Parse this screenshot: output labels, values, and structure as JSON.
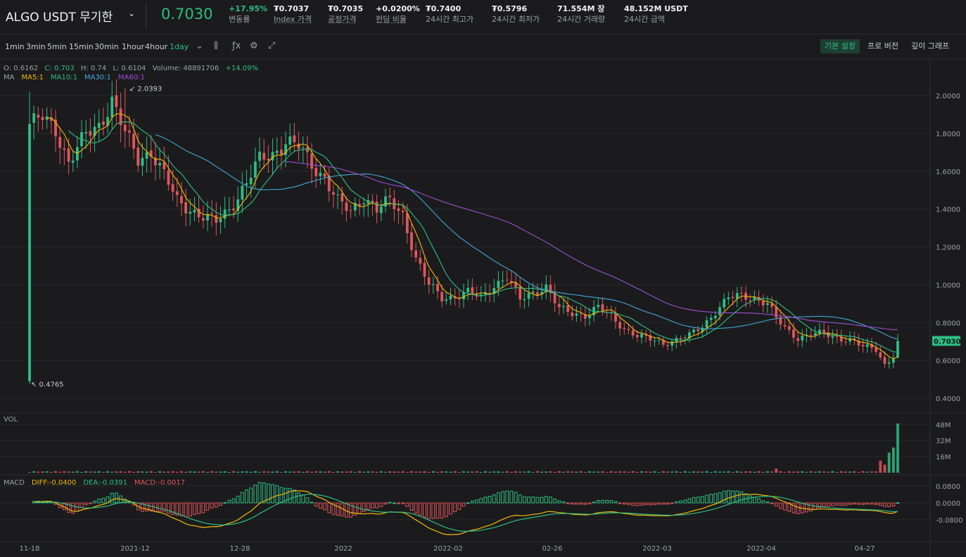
{
  "header": {
    "symbol": "ALGO USDT 무기한",
    "last_price": "0.7030",
    "stats": [
      {
        "value": "+17.95%",
        "label": "변동률",
        "up": true,
        "dotted": false
      },
      {
        "value": "₮0.7037",
        "label": "Index 가격",
        "up": false,
        "dotted": true
      },
      {
        "value": "₮0.7035",
        "label": "공정가격",
        "up": false,
        "dotted": true
      },
      {
        "value": "+0.0200%",
        "label": "펀딩 비율",
        "up": false,
        "dotted": true
      },
      {
        "value": "₮0.7400",
        "label": "24시간 최고가",
        "up": false,
        "dotted": false
      },
      {
        "value": "₮0.5796",
        "label": "24시간 최저가",
        "up": false,
        "dotted": false
      },
      {
        "value": "71.554M 장",
        "label": "24시간 거래량",
        "up": false,
        "dotted": false
      },
      {
        "value": "48.152M USDT",
        "label": "24시간 금액",
        "up": false,
        "dotted": false
      }
    ]
  },
  "toolbar": {
    "intervals": [
      "1min",
      "3min",
      "5min",
      "15min",
      "30min",
      "1hour",
      "4hour",
      "1day"
    ],
    "active_interval": "1day",
    "tools": [
      "chevron-down-icon",
      "candlestick-icon",
      "fx-icon",
      "settings-icon",
      "fullscreen-icon"
    ],
    "views": [
      "기본 설정",
      "프로 버전",
      "깊이 그래프"
    ],
    "active_view": "기본 설정"
  },
  "ohlc": {
    "open": "O: 0.6162",
    "close": "C: 0.703",
    "high": "H: 0.74",
    "low": "L: 0.6104",
    "volume": "Volume: 48891706",
    "change": "+14.09%"
  },
  "ma_legend": {
    "title": "MA",
    "items": [
      {
        "label": "MA5:1",
        "color": "#f0b90b"
      },
      {
        "label": "MA10:1",
        "color": "#2ebd85"
      },
      {
        "label": "MA30:1",
        "color": "#43a7d6"
      },
      {
        "label": "MA60:1",
        "color": "#9b4fd1"
      }
    ]
  },
  "vol_label": "VOL",
  "macd_legend": {
    "title": "MACD",
    "items": [
      {
        "label": "DIFF:-0.0400",
        "color": "#f0b90b"
      },
      {
        "label": "DEA:-0.0391",
        "color": "#2ebd85"
      },
      {
        "label": "MACD:-0.0017",
        "color": "#e0565b"
      }
    ]
  },
  "colors": {
    "up": "#2ebd85",
    "down": "#e0565b",
    "bg": "#1b1b1d",
    "grid": "#26282c"
  },
  "chart_data": [
    {
      "type": "candlestick",
      "title": "",
      "price_axis_ticks": [
        "2.0000",
        "1.8000",
        "1.6000",
        "1.4000",
        "1.2000",
        "1.0000",
        "0.8000",
        "0.6000",
        "0.4000"
      ],
      "ylim": [
        0.33,
        2.15
      ],
      "x_ticks": [
        "11-18",
        "2021-12",
        "12-28",
        "2022",
        "2022-02",
        "02-26",
        "2022-03",
        "2022-04",
        "04-27"
      ],
      "annotations": {
        "high": "2.0393",
        "low": "0.4765",
        "last_price_tag": "0.7030"
      },
      "closes_anchor": [
        [
          0,
          1.85
        ],
        [
          3,
          1.88
        ],
        [
          6,
          1.82
        ],
        [
          9,
          1.65
        ],
        [
          13,
          1.79
        ],
        [
          16,
          1.84
        ],
        [
          19,
          1.98
        ],
        [
          22,
          1.8
        ],
        [
          25,
          1.66
        ],
        [
          28,
          1.71
        ],
        [
          31,
          1.58
        ],
        [
          34,
          1.44
        ],
        [
          37,
          1.4
        ],
        [
          40,
          1.36
        ],
        [
          43,
          1.33
        ],
        [
          46,
          1.4
        ],
        [
          50,
          1.54
        ],
        [
          53,
          1.66
        ],
        [
          56,
          1.69
        ],
        [
          59,
          1.76
        ],
        [
          62,
          1.73
        ],
        [
          65,
          1.63
        ],
        [
          68,
          1.57
        ],
        [
          71,
          1.44
        ],
        [
          74,
          1.38
        ],
        [
          77,
          1.47
        ],
        [
          80,
          1.4
        ],
        [
          83,
          1.44
        ],
        [
          86,
          1.37
        ],
        [
          89,
          1.14
        ],
        [
          92,
          1.0
        ],
        [
          95,
          0.93
        ],
        [
          98,
          0.94
        ],
        [
          101,
          0.96
        ],
        [
          104,
          0.93
        ],
        [
          107,
          1.0
        ],
        [
          110,
          1.04
        ],
        [
          113,
          0.92
        ],
        [
          116,
          0.96
        ],
        [
          119,
          0.99
        ],
        [
          122,
          0.87
        ],
        [
          125,
          0.85
        ],
        [
          128,
          0.84
        ],
        [
          131,
          0.88
        ],
        [
          134,
          0.83
        ],
        [
          137,
          0.77
        ],
        [
          140,
          0.73
        ],
        [
          143,
          0.71
        ],
        [
          146,
          0.69
        ],
        [
          149,
          0.71
        ],
        [
          152,
          0.73
        ],
        [
          155,
          0.78
        ],
        [
          158,
          0.86
        ],
        [
          161,
          0.93
        ],
        [
          164,
          0.94
        ],
        [
          167,
          0.93
        ],
        [
          170,
          0.9
        ],
        [
          172,
          0.82
        ],
        [
          174,
          0.77
        ],
        [
          177,
          0.72
        ],
        [
          180,
          0.74
        ],
        [
          183,
          0.74
        ],
        [
          186,
          0.72
        ],
        [
          189,
          0.71
        ],
        [
          192,
          0.67
        ],
        [
          195,
          0.66
        ],
        [
          197,
          0.58
        ],
        [
          199,
          0.62
        ],
        [
          200,
          0.703
        ]
      ],
      "volume_axis_ticks": [
        "48M",
        "32M",
        "16M"
      ],
      "volume_recent": [
        12,
        8,
        20,
        25,
        48.9
      ],
      "macd_axis_ticks": [
        "0.0800",
        "0.0000",
        "-0.0800"
      ],
      "macd_last": {
        "diff": -0.04,
        "dea": -0.0391,
        "macd": -0.0017
      }
    }
  ]
}
